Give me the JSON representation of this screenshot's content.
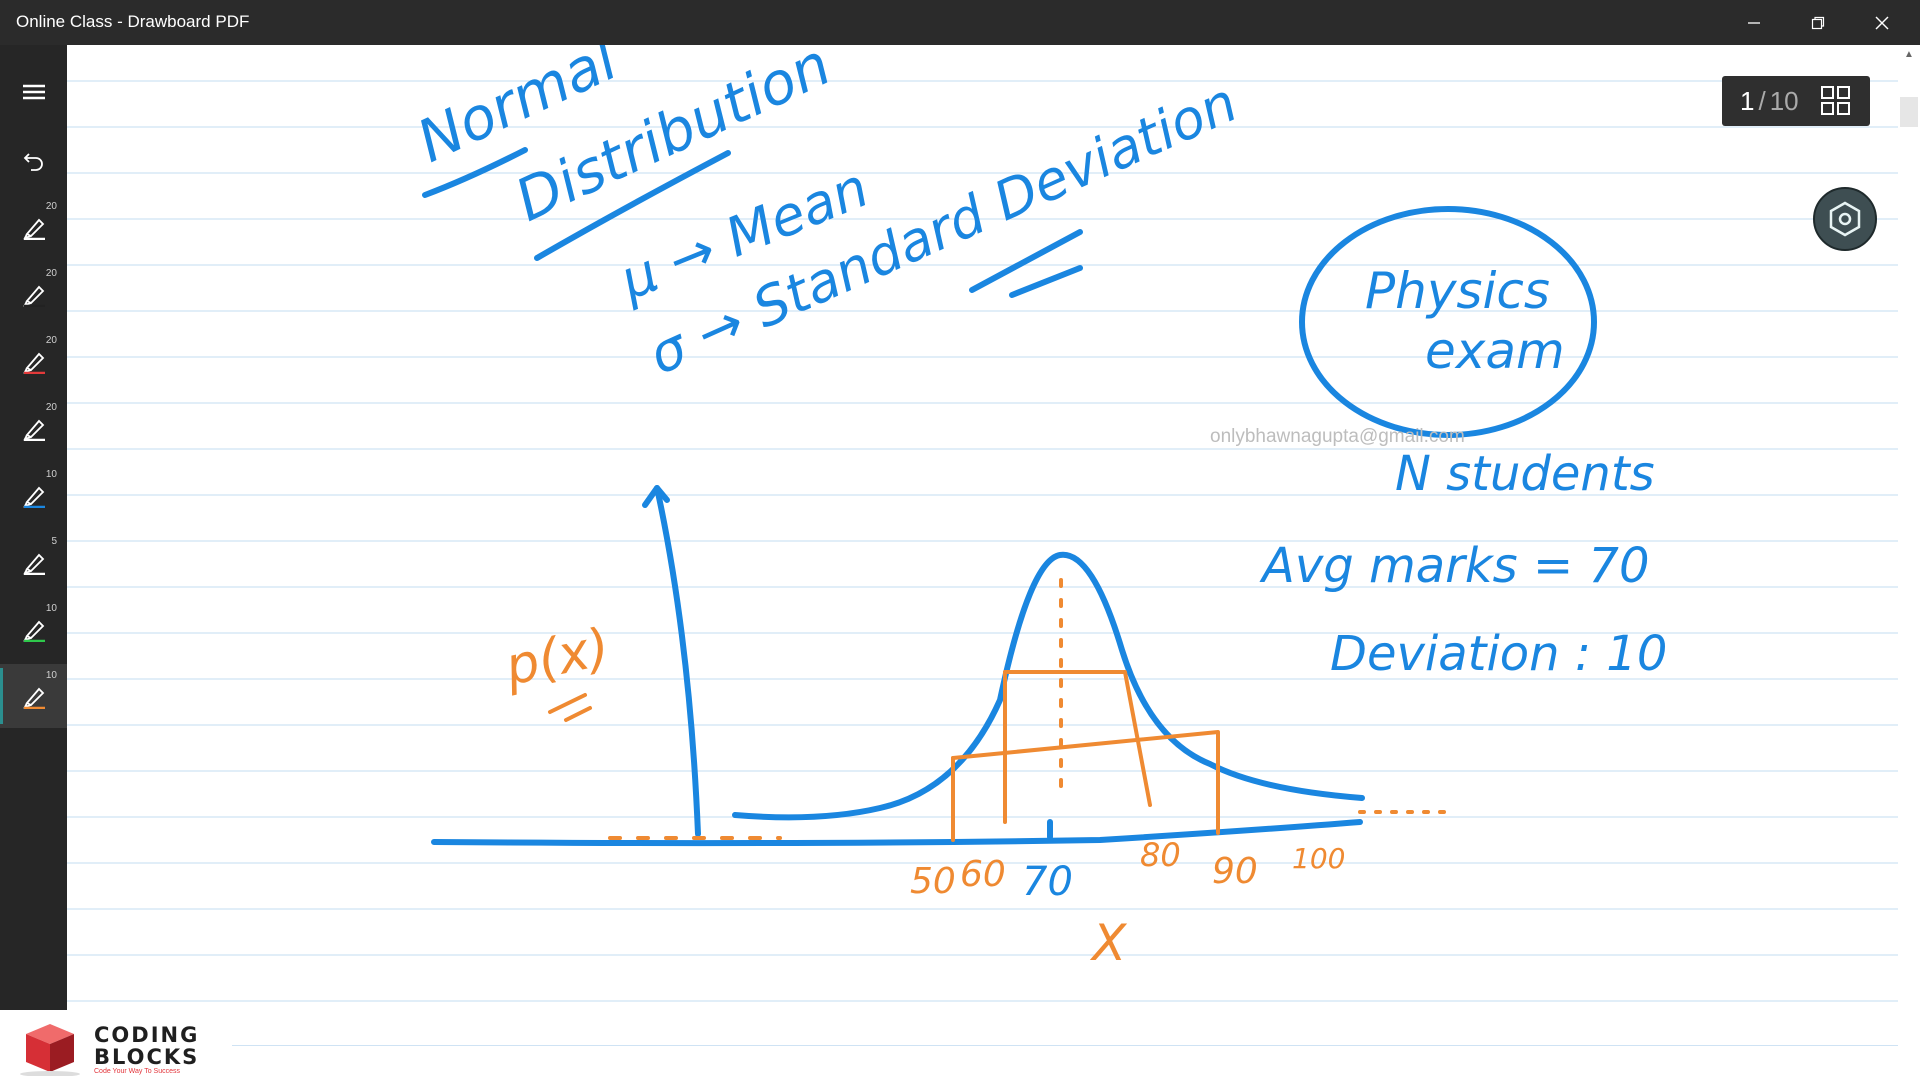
{
  "window": {
    "title": "Online Class - Drawboard PDF",
    "minimize_icon": "minimize-icon",
    "restore_icon": "restore-icon",
    "close_icon": "close-icon"
  },
  "toolbar": {
    "menu_icon": "hamburger-icon",
    "undo_icon": "undo-icon",
    "pens": [
      {
        "size": "20",
        "color": "#ffffff"
      },
      {
        "size": "20",
        "color": "#222222"
      },
      {
        "size": "20",
        "color": "#e23a3a"
      },
      {
        "size": "20",
        "color": "#ffffff"
      },
      {
        "size": "10",
        "color": "#1a86e0"
      },
      {
        "size": "5",
        "color": "#ffffff"
      },
      {
        "size": "10",
        "color": "#2ec84b"
      },
      {
        "size": "10",
        "color": "#ef8a32"
      }
    ],
    "active_pen_index": 7,
    "accent": "#2b8f8f"
  },
  "page_indicator": {
    "current": "1",
    "separator": "/",
    "total": "10",
    "grid_icon": "grid-icon"
  },
  "float_button": {
    "icon": "hexagon-settings-icon",
    "color": "#3e4e52"
  },
  "watermark": "onlybhawnagupta@gmail.com",
  "notes": {
    "title_word1": "Normal",
    "title_word2": "Distribution",
    "mu_line": "μ → Mean",
    "sigma_line": "σ → Standard Deviation",
    "circled_text_1": "Physics",
    "circled_text_2": "exam",
    "n_students": "N students",
    "avg_marks": "Avg marks = 70",
    "deviation": "Deviation : 10",
    "y_axis_label": "p(x)",
    "x_axis_label": "X",
    "ticks": [
      "50",
      "60",
      "70",
      "80",
      "90",
      "100"
    ]
  },
  "branding": {
    "line1": "CODING",
    "line2": "BLOCKS",
    "tagline": "Code Your Way To Success"
  },
  "colors": {
    "ink_blue": "#1a86e0",
    "ink_orange": "#ef8a32",
    "rule_line": "#cfe3f4",
    "titlebar": "#2b2b2b",
    "toolbar": "#262626"
  }
}
